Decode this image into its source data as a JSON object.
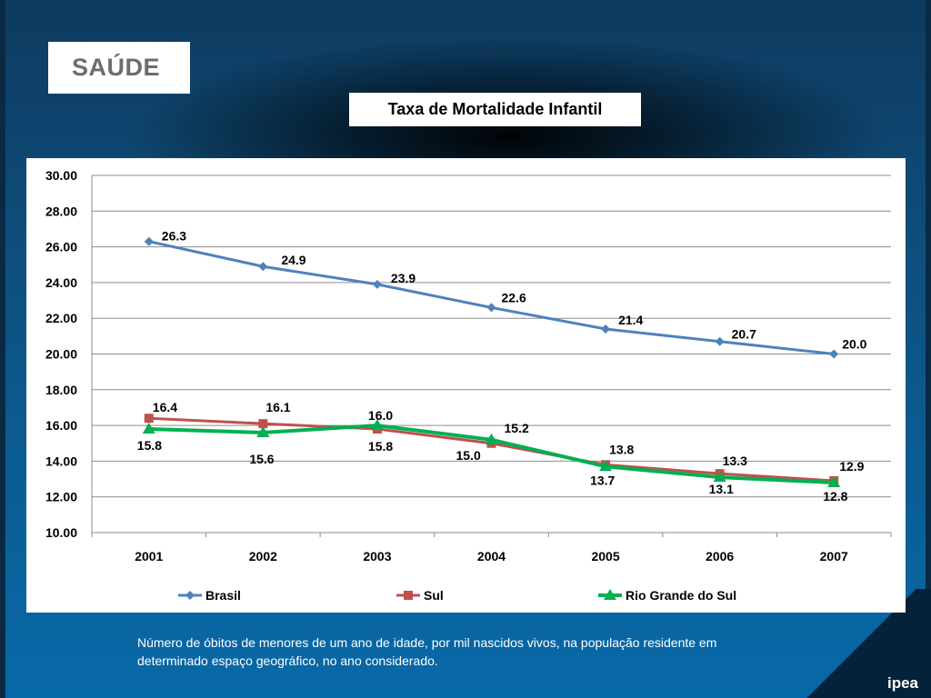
{
  "section": {
    "label": "SAÚDE"
  },
  "chart_title": "Taxa de Mortalidade Infantil",
  "caption": "Número de óbitos de menores de um ano de idade, por mil nascidos vivos, na  população residente em determinado espaço geográfico, no ano considerado.",
  "logo": "ipea",
  "chart_data": {
    "type": "line",
    "title": "Taxa de Mortalidade Infantil",
    "xlabel": "",
    "ylabel": "",
    "x": [
      "2001",
      "2002",
      "2003",
      "2004",
      "2005",
      "2006",
      "2007"
    ],
    "ylim": [
      10,
      30
    ],
    "yticks": [
      "10.00",
      "12.00",
      "14.00",
      "16.00",
      "18.00",
      "20.00",
      "22.00",
      "24.00",
      "26.00",
      "28.00",
      "30.00"
    ],
    "grid": true,
    "legend_position": "bottom",
    "series": [
      {
        "name": "Brasil",
        "values": [
          26.3,
          24.9,
          23.9,
          22.6,
          21.4,
          20.7,
          20.0
        ],
        "labels": [
          "26.3",
          "24.9",
          "23.9",
          "22.6",
          "21.4",
          "20.7",
          "20.0"
        ],
        "color": "#4f81bd",
        "marker": "diamond"
      },
      {
        "name": "Sul",
        "values": [
          16.4,
          16.1,
          15.8,
          15.0,
          13.8,
          13.3,
          12.9
        ],
        "labels": [
          "16.4",
          "16.1",
          "15.8",
          "15.0",
          "13.8",
          "13.3",
          "12.9"
        ],
        "color": "#c0504d",
        "marker": "square"
      },
      {
        "name": "Rio Grande do Sul",
        "values": [
          15.8,
          15.6,
          16.0,
          15.2,
          13.7,
          13.1,
          12.8
        ],
        "labels": [
          "15.8",
          "15.6",
          "16.0",
          "15.2",
          "13.7",
          "13.1",
          "12.8"
        ],
        "color": "#00b050",
        "marker": "triangle"
      }
    ]
  }
}
